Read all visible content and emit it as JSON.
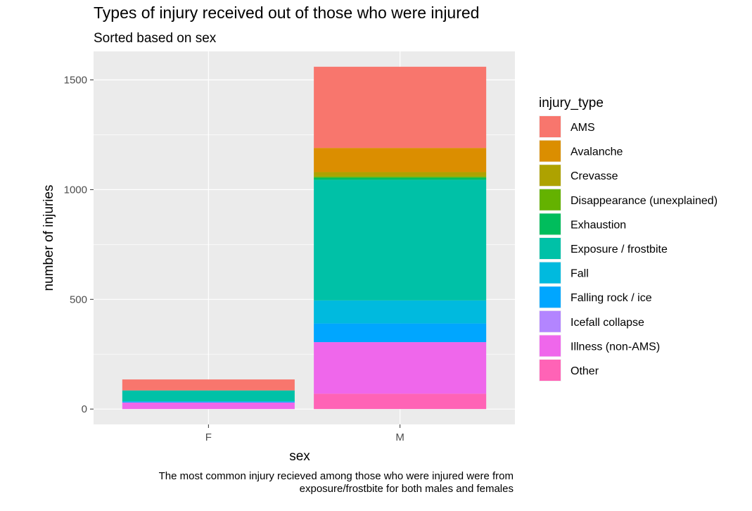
{
  "chart_data": {
    "type": "bar",
    "stacked": true,
    "title": "Types of injury received out of those who were injured",
    "subtitle": "Sorted based on sex",
    "xlabel": "sex",
    "ylabel": "number of injuries",
    "categories": [
      "F",
      "M"
    ],
    "ylim": [
      -70,
      1630
    ],
    "yticks": [
      0,
      500,
      1000,
      1500
    ],
    "ytick_labels": [
      "0",
      "500",
      "1000",
      "1500"
    ],
    "legend_title": "injury_type",
    "legend_position": "right",
    "grid": true,
    "caption": [
      "The most common injury recieved among those who were injured were from",
      "exposure/frostbite for both males and females"
    ],
    "series": [
      {
        "name": "AMS",
        "color": "#F8766D",
        "values": [
          50,
          370
        ]
      },
      {
        "name": "Avalanche",
        "color": "#DB8E00",
        "values": [
          0,
          110
        ]
      },
      {
        "name": "Crevasse",
        "color": "#AEA200",
        "values": [
          0,
          20
        ]
      },
      {
        "name": "Disappearance (unexplained)",
        "color": "#64B200",
        "values": [
          0,
          5
        ]
      },
      {
        "name": "Exhaustion",
        "color": "#00BD5C",
        "values": [
          0,
          10
        ]
      },
      {
        "name": "Exposure / frostbite",
        "color": "#00C1A7",
        "values": [
          50,
          550
        ]
      },
      {
        "name": "Fall",
        "color": "#00BADE",
        "values": [
          0,
          105
        ]
      },
      {
        "name": "Falling rock / ice",
        "color": "#00A6FF",
        "values": [
          5,
          85
        ]
      },
      {
        "name": "Icefall collapse",
        "color": "#B385FF",
        "values": [
          0,
          0
        ]
      },
      {
        "name": "Illness (non-AMS)",
        "color": "#EF67EB",
        "values": [
          30,
          235
        ]
      },
      {
        "name": "Other",
        "color": "#FF63B6",
        "values": [
          0,
          70
        ]
      }
    ]
  }
}
